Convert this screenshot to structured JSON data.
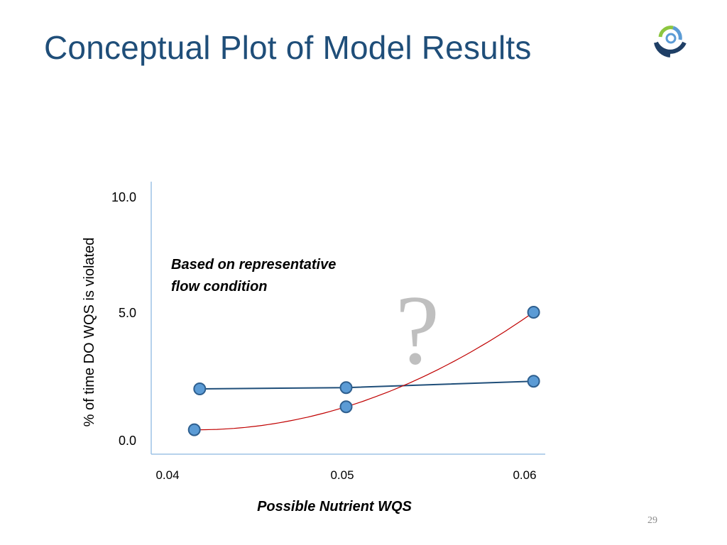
{
  "slide": {
    "title": "Conceptual Plot of Model Results",
    "slide_number": "29",
    "logo_icon": "concentric-circles-logo-icon"
  },
  "chart_data": {
    "type": "line",
    "title": "",
    "xlabel": "Possible Nutrient WQS",
    "ylabel": "% of time DO WQS is violated",
    "x_tick_labels": [
      "0.04",
      "0.05",
      "0.06"
    ],
    "y_tick_labels": [
      "10.0",
      "5.0",
      "0.0"
    ],
    "xlim": [
      0.04,
      0.062
    ],
    "ylim": [
      0,
      10.5
    ],
    "grid": false,
    "annotation": "Based on representative flow condition",
    "annotation_lines": [
      "Based on representative",
      "flow condition"
    ],
    "question_mark": "?",
    "colors": {
      "marker_fill": "#5b9bd5",
      "marker_stroke": "#2e5f8f",
      "series_flat": "#1f4e79",
      "series_curve": "#c00000",
      "axis": "#9dc3e6",
      "question_mark": "#bfbfbf"
    },
    "series": [
      {
        "line_style": "straight",
        "color": "#1f4e79",
        "x": [
          0.0418,
          0.05,
          0.0605
        ],
        "y": [
          2.0,
          2.05,
          2.3
        ]
      },
      {
        "line_style": "smooth-curve",
        "color": "#c00000",
        "x": [
          0.0415,
          0.05,
          0.0605
        ],
        "y": [
          0.4,
          1.3,
          5.0
        ]
      }
    ]
  }
}
